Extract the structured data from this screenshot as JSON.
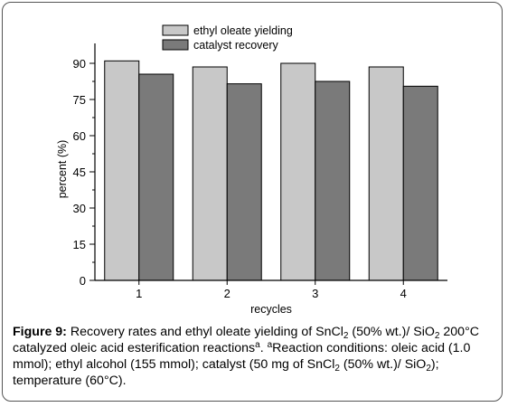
{
  "chart_data": {
    "type": "bar",
    "categories": [
      "1",
      "2",
      "3",
      "4"
    ],
    "series": [
      {
        "name": "ethyl oleate yielding",
        "values": [
          91,
          88.5,
          90,
          88.5
        ],
        "color": "#c8c8c8"
      },
      {
        "name": "catalyst recovery",
        "values": [
          85.5,
          81.5,
          82.5,
          80.5
        ],
        "color": "#7a7a7a"
      }
    ],
    "xlabel": "recycles",
    "ylabel": "percent (%)",
    "ylim": [
      0,
      96
    ],
    "yticks": [
      0,
      15,
      30,
      45,
      60,
      75,
      90
    ],
    "grid": false,
    "legend_position": "top-center"
  },
  "caption": {
    "label": "Figure 9:",
    "t1": " Recovery rates and ethyl oleate yielding of SnCl",
    "s1": "2",
    "t2": " (50% wt.)/ SiO",
    "s2": "2",
    "t3": " 200°C catalyzed oleic acid esterification reactions",
    "sup1": "a",
    "t4": ". ",
    "sup2": "a",
    "t5": "Reaction conditions: oleic acid (1.0 mmol); ethyl alcohol (155 mmol); catalyst (50 mg of SnCl",
    "s3": "2",
    "t6": " (50% wt.)/ SiO",
    "s4": "2",
    "t7": "); temperature (60°C)."
  }
}
